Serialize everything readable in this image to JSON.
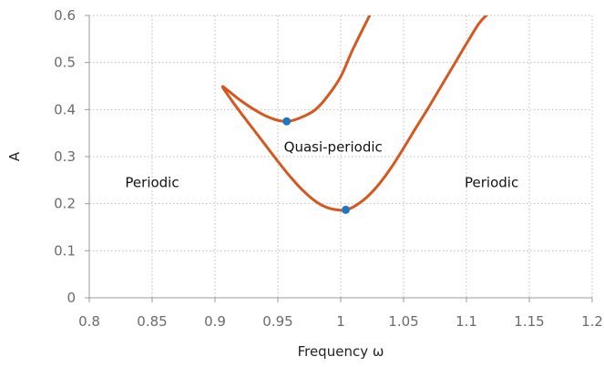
{
  "chart_data": {
    "type": "line",
    "title": "",
    "xlabel": "Frequency ω",
    "ylabel": "A",
    "xlim": [
      0.8,
      1.2
    ],
    "ylim": [
      0,
      0.6
    ],
    "x_ticks": [
      0.8,
      0.85,
      0.9,
      0.95,
      1,
      1.05,
      1.1,
      1.15,
      1.2
    ],
    "x_tick_labels": [
      "0.8",
      "0.85",
      "0.9",
      "0.95",
      "1",
      "1.05",
      "1.1",
      "1.15",
      "1.2"
    ],
    "y_ticks": [
      0,
      0.1,
      0.2,
      0.3,
      0.4,
      0.5,
      0.6
    ],
    "y_tick_labels": [
      "0",
      "0.1",
      "0.2",
      "0.3",
      "0.4",
      "0.5",
      "0.6"
    ],
    "grid": true,
    "legend": "none",
    "series": [
      {
        "color": "#d4581f",
        "x": [
          1.023,
          1.01,
          1.0,
          0.99,
          0.98,
          0.97,
          0.962,
          0.957,
          0.95,
          0.94,
          0.93,
          0.92,
          0.912,
          0.906,
          0.91,
          0.92,
          0.93,
          0.94,
          0.95,
          0.96,
          0.97,
          0.98,
          0.99,
          1.0,
          1.004,
          1.01,
          1.02,
          1.03,
          1.04,
          1.05,
          1.06,
          1.07,
          1.08,
          1.09,
          1.1,
          1.11,
          1.117
        ],
        "y": [
          0.6,
          0.53,
          0.47,
          0.43,
          0.4,
          0.385,
          0.377,
          0.375,
          0.377,
          0.387,
          0.402,
          0.42,
          0.437,
          0.449,
          0.432,
          0.395,
          0.36,
          0.325,
          0.29,
          0.257,
          0.228,
          0.205,
          0.191,
          0.186,
          0.187,
          0.193,
          0.212,
          0.24,
          0.276,
          0.318,
          0.362,
          0.405,
          0.45,
          0.495,
          0.54,
          0.583,
          0.603
        ]
      }
    ],
    "points": [
      {
        "x": 0.957,
        "y": 0.375,
        "color": "#1f77c4"
      },
      {
        "x": 1.004,
        "y": 0.187,
        "color": "#1f77c4"
      }
    ],
    "annotations": [
      {
        "text": "Periodic",
        "x": 0.85,
        "y": 0.245
      },
      {
        "text": "Quasi-periodic",
        "x": 0.994,
        "y": 0.32
      },
      {
        "text": "Periodic",
        "x": 1.12,
        "y": 0.245
      }
    ]
  }
}
